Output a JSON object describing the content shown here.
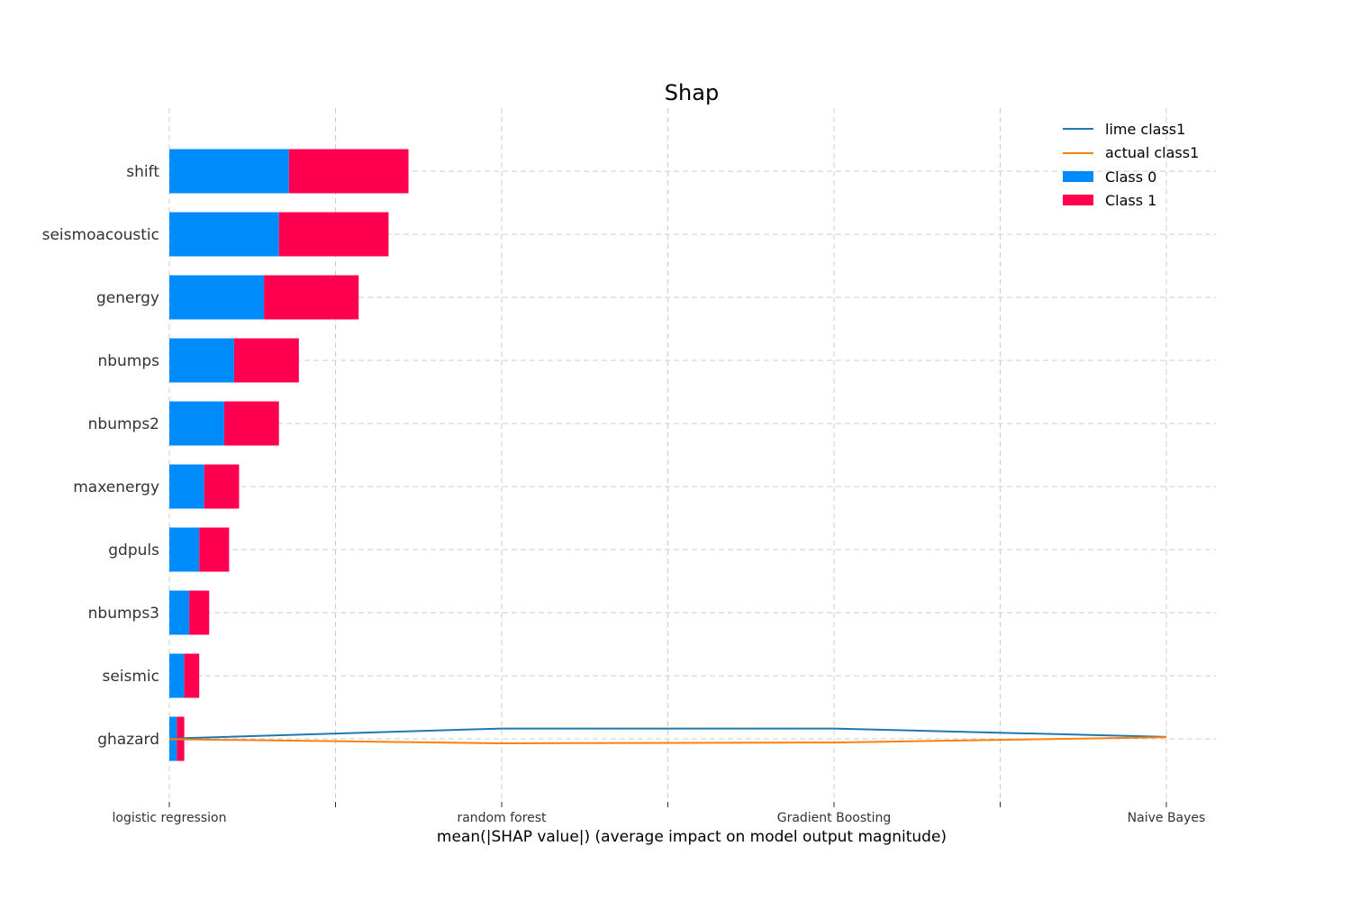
{
  "chart_data": {
    "type": "bar",
    "title": "Shap",
    "xlabel": "mean(|SHAP value|) (average impact on model output magnitude)",
    "ylabel": "",
    "orientation": "horizontal",
    "stacked": true,
    "grid": true,
    "legend_position": "top-right",
    "x_tick_labels": [
      "logistic regression",
      "",
      "random forest",
      "",
      "Gradient Boosting",
      "",
      "Naive Bayes"
    ],
    "x_tick_positions": [
      0,
      0.5,
      1,
      1.5,
      2,
      2.5,
      3
    ],
    "xlim": [
      0,
      3.15
    ],
    "categories": [
      "shift",
      "seismoacoustic",
      "genergy",
      "nbumps",
      "nbumps2",
      "maxenergy",
      "gdpuls",
      "nbumps3",
      "seismic",
      "ghazard"
    ],
    "series": [
      {
        "name": "Class 0",
        "color": "#008bfb",
        "values": [
          0.024,
          0.022,
          0.019,
          0.013,
          0.011,
          0.007,
          0.006,
          0.004,
          0.003,
          0.0015
        ]
      },
      {
        "name": "Class 1",
        "color": "#ff0051",
        "values": [
          0.024,
          0.022,
          0.019,
          0.013,
          0.011,
          0.007,
          0.006,
          0.004,
          0.003,
          0.0015
        ]
      }
    ],
    "lines": [
      {
        "name": "lime class1",
        "color": "#1f77b4",
        "x": [
          0,
          1,
          2,
          3
        ],
        "y": [
          0.017,
          0.053,
          0.053,
          0.023
        ]
      },
      {
        "name": "actual class1",
        "color": "#ff7f0e",
        "x": [
          0,
          1,
          2,
          3
        ],
        "y": [
          0.015,
          0.0,
          0.003,
          0.022
        ]
      }
    ]
  }
}
